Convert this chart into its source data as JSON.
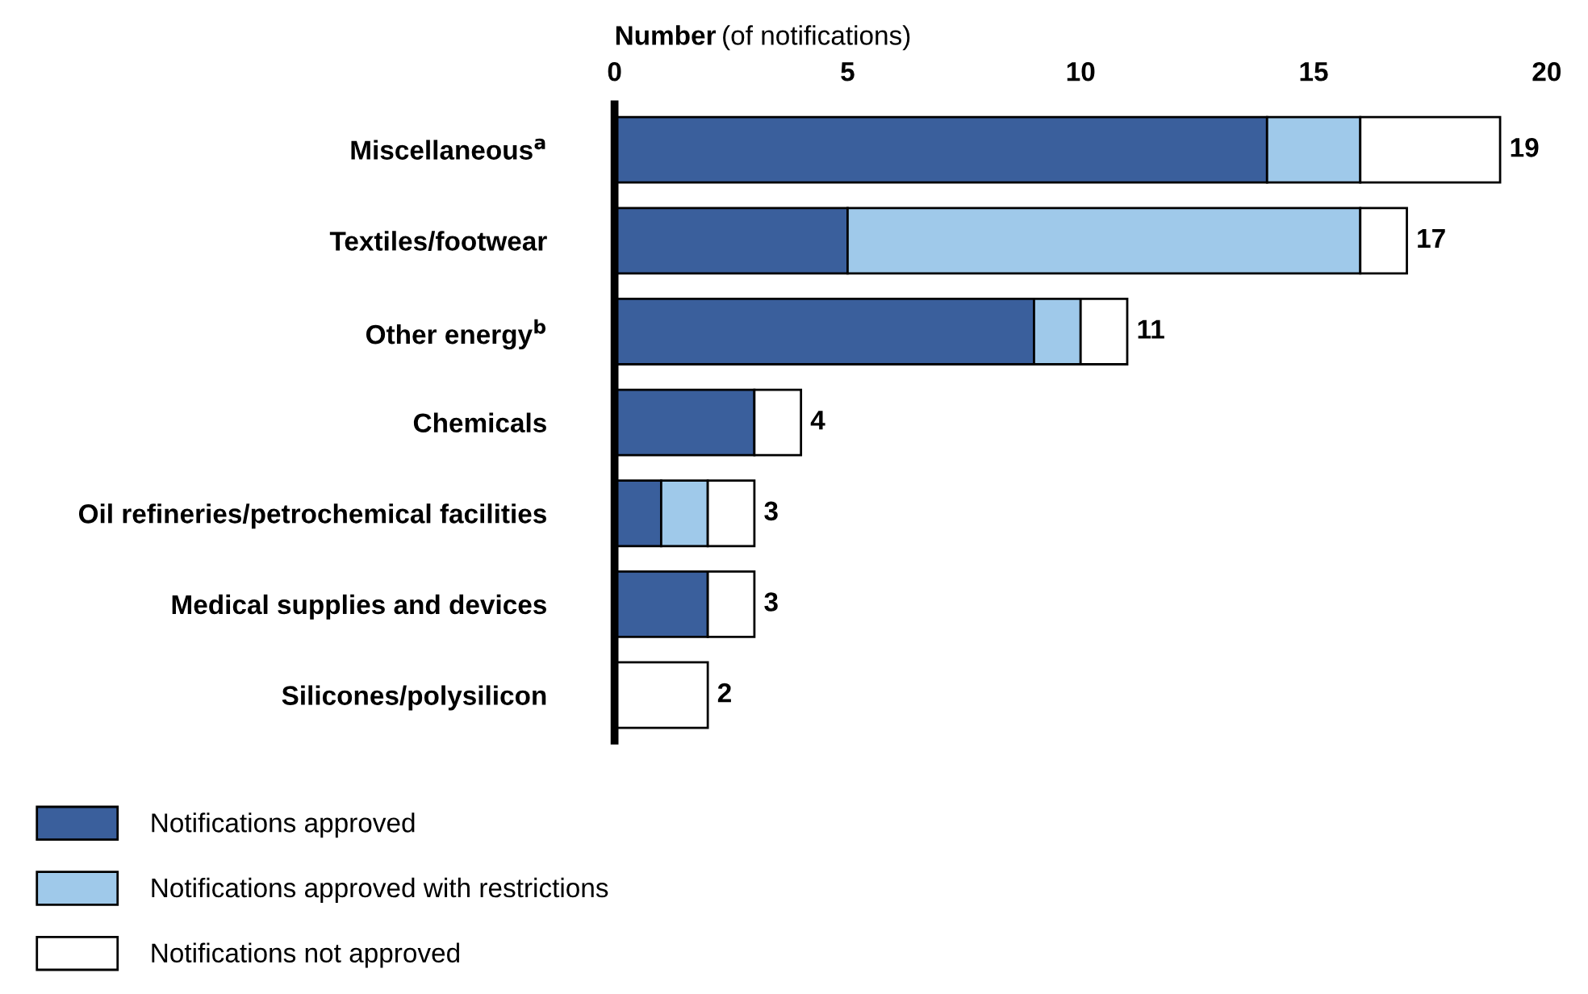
{
  "chart_data": {
    "type": "bar",
    "orientation": "horizontal",
    "stacked": true,
    "xlabel": "Number (of notifications)",
    "categories": [
      "Miscellaneous$^{a}$",
      "Textiles/footwear",
      "Other energy$^{b}$",
      "Chemicals",
      "Oil refineries/petrochemical facilities",
      "Medical supplies and devices",
      "Silicones/polysilicon"
    ],
    "series": [
      {
        "name": "Notifications approved",
        "color": "#3a5f9c",
        "values": [
          14,
          5,
          9,
          3,
          1,
          2,
          0
        ]
      },
      {
        "name": "Notifications approved with restrictions",
        "color": "#9fc9ea",
        "values": [
          2,
          11,
          1,
          0,
          1,
          0,
          0
        ]
      },
      {
        "name": "Notifications not approved",
        "color": "#ffffff",
        "values": [
          3,
          1,
          1,
          1,
          1,
          1,
          2
        ]
      }
    ],
    "totals": [
      "19",
      "17",
      "11",
      "4",
      "3",
      "3",
      "2"
    ],
    "xlim": [
      0,
      20
    ],
    "xticks": [
      0,
      5,
      10,
      15,
      20
    ],
    "grid": false,
    "legend": "bottom left"
  }
}
